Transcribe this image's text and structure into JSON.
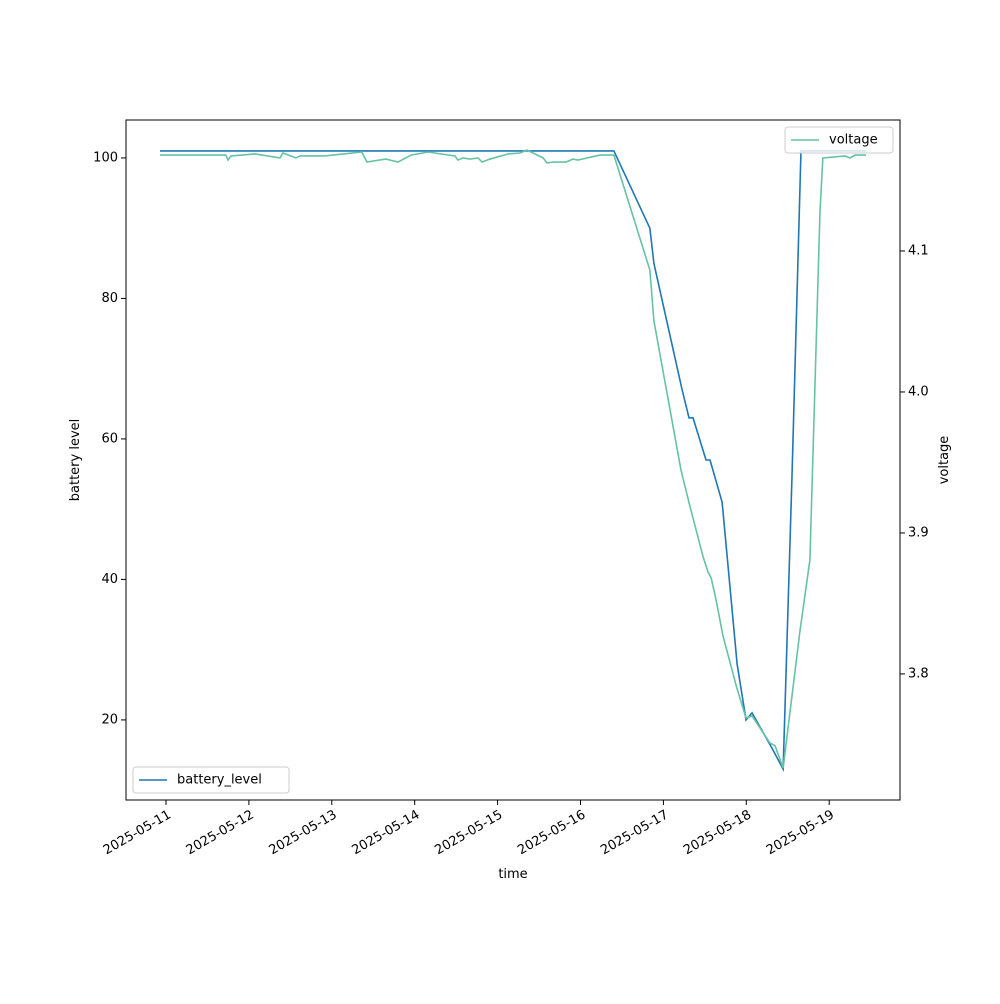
{
  "chart_data": {
    "type": "line",
    "xlabel": "time",
    "ylabel": "battery level",
    "y2label": "voltage",
    "xlim": [
      "2025-05-10T12:25",
      "2025-05-19T20:30"
    ],
    "xticks": [
      "2025-05-11",
      "2025-05-12",
      "2025-05-13",
      "2025-05-14",
      "2025-05-15",
      "2025-05-16",
      "2025-05-17",
      "2025-05-18",
      "2025-05-19"
    ],
    "ylim": [
      8.6,
      105.4
    ],
    "yticks": [
      20,
      40,
      60,
      80,
      100
    ],
    "y2lim": [
      3.7106,
      4.1929
    ],
    "y2ticks": [
      3.8,
      3.9,
      {
        "value": 4,
        "label": "4.0"
      },
      4.1
    ],
    "grid": false,
    "series": [
      {
        "name": "battery_level",
        "color": "#1f77b4",
        "legend": "lower left",
        "x": [
          "2025-05-10T22:15",
          "2025-05-16T09:40",
          "2025-05-16T20:05",
          "2025-05-16T21:15",
          "2025-05-17T05:25",
          "2025-05-17T07:25",
          "2025-05-17T08:35",
          "2025-05-17T12:20",
          "2025-05-17T13:30",
          "2025-05-17T17:00",
          "2025-05-17T21:20",
          "2025-05-17T23:55",
          "2025-05-18T01:40",
          "2025-05-18T07:25",
          "2025-05-18T10:40",
          "2025-05-18T13:15",
          "2025-05-18T15:50",
          "2025-05-19T10:40"
        ],
        "values": [
          101,
          101,
          90,
          85,
          67,
          63,
          63,
          57,
          57,
          51,
          28,
          20,
          21,
          16,
          13,
          55,
          101,
          101
        ]
      },
      {
        "name": "voltage",
        "color": "#66c2a5",
        "axis": "y2",
        "legend": "upper right",
        "x": [
          "2025-05-10T22:15",
          "2025-05-11T17:20",
          "2025-05-11T17:55",
          "2025-05-11T18:50",
          "2025-05-12T01:45",
          "2025-05-12T09:00",
          "2025-05-12T09:50",
          "2025-05-12T13:35",
          "2025-05-12T14:50",
          "2025-05-12T22:00",
          "2025-05-13T08:40",
          "2025-05-13T10:10",
          "2025-05-13T15:40",
          "2025-05-13T19:10",
          "2025-05-13T22:55",
          "2025-05-14T03:50",
          "2025-05-14T11:40",
          "2025-05-14T12:30",
          "2025-05-14T14:00",
          "2025-05-14T16:00",
          "2025-05-14T18:20",
          "2025-05-14T19:30",
          "2025-05-14T21:50",
          "2025-05-15T03:00",
          "2025-05-15T06:30",
          "2025-05-15T08:30",
          "2025-05-15T13:10",
          "2025-05-15T14:20",
          "2025-05-15T16:00",
          "2025-05-15T19:50",
          "2025-05-15T21:50",
          "2025-05-15T23:15",
          "2025-05-16T04:30",
          "2025-05-16T05:40",
          "2025-05-16T09:40",
          "2025-05-16T20:05",
          "2025-05-16T21:15",
          "2025-05-17T05:05",
          "2025-05-17T07:40",
          "2025-05-17T11:30",
          "2025-05-17T12:55",
          "2025-05-17T13:50",
          "2025-05-17T15:15",
          "2025-05-17T17:15",
          "2025-05-17T21:20",
          "2025-05-17T23:55",
          "2025-05-18T01:40",
          "2025-05-18T06:50",
          "2025-05-18T08:20",
          "2025-05-18T10:40",
          "2025-05-18T15:30",
          "2025-05-18T18:25",
          "2025-05-18T21:20",
          "2025-05-18T22:10",
          "2025-05-19T04:35",
          "2025-05-19T06:00",
          "2025-05-19T07:30",
          "2025-05-19T10:40"
        ],
        "values": [
          4.168,
          4.168,
          4.1645,
          4.1674,
          4.1688,
          4.166,
          4.1695,
          4.166,
          4.1674,
          4.1674,
          4.1702,
          4.1631,
          4.1652,
          4.1631,
          4.168,
          4.1702,
          4.1674,
          4.1645,
          4.166,
          4.1652,
          4.166,
          4.1631,
          4.1652,
          4.1688,
          4.1695,
          4.1716,
          4.166,
          4.1624,
          4.1631,
          4.1631,
          4.1652,
          4.1645,
          4.1674,
          4.168,
          4.168,
          4.0865,
          4.0504,
          3.9447,
          3.9191,
          3.883,
          3.8723,
          3.8681,
          3.8525,
          3.827,
          3.7894,
          3.7688,
          3.7702,
          3.7511,
          3.749,
          3.7333,
          3.8298,
          3.8809,
          4.1277,
          4.166,
          4.1674,
          4.166,
          4.168,
          4.168
        ]
      }
    ]
  }
}
